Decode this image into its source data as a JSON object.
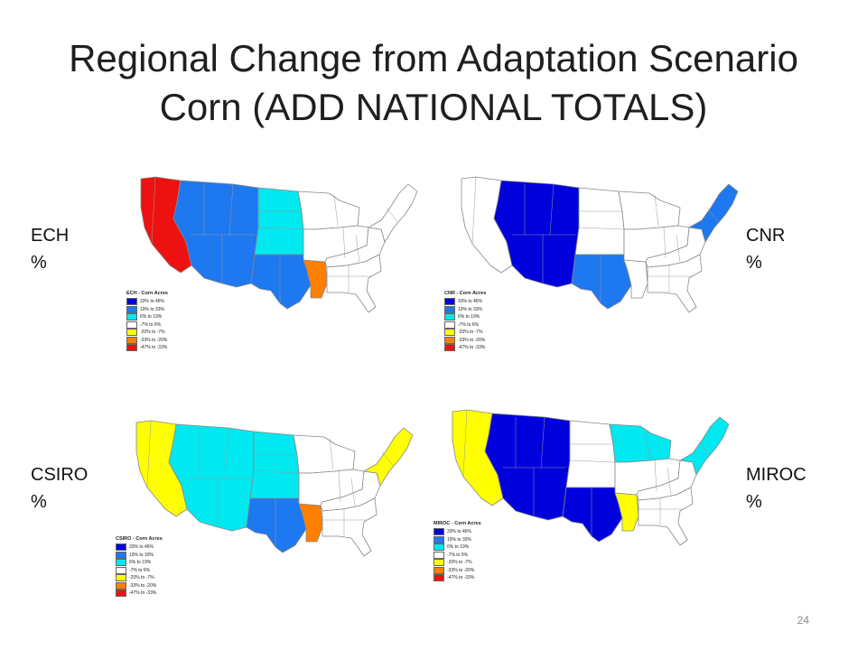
{
  "slide": {
    "title_line1": "Regional Change from Adaptation Scenario",
    "title_line2": "Corn (ADD NATIONAL TOTALS)",
    "page_number": "24"
  },
  "legend_items": [
    {
      "label": "33% to 46%",
      "color": "#0000dd"
    },
    {
      "label": "19% to 33%",
      "color": "#1e78f0"
    },
    {
      "label": "6% to 19%",
      "color": "#00e8f0"
    },
    {
      "label": "-7% to 6%",
      "color": "#ffffff"
    },
    {
      "label": "-20% to -7%",
      "color": "#ffff00"
    },
    {
      "label": "-33% to -20%",
      "color": "#ff7f00"
    },
    {
      "label": "-47% to -33%",
      "color": "#ee1111"
    }
  ],
  "maps": [
    {
      "id": "ech",
      "side_name": "ECH",
      "side_unit": "%",
      "legend_title": "ECH - Corn Acres",
      "regions": {
        "pacific": "#ee1111",
        "mountain": "#1e78f0",
        "northern_plains": "#00e8f0",
        "southern_plains": "#1e78f0",
        "delta": "#ff7f00",
        "lake_states": "#ffffff",
        "corn_belt": "#ffffff",
        "appalachia": "#ffffff",
        "southeast": "#ffffff",
        "northeast": "#ffffff"
      }
    },
    {
      "id": "cnr",
      "side_name": "CNR",
      "side_unit": "%",
      "legend_title": "CNR - Corn Acres",
      "regions": {
        "pacific": "#ffffff",
        "mountain": "#0000dd",
        "northern_plains": "#ffffff",
        "southern_plains": "#1e78f0",
        "delta": "#ffffff",
        "lake_states": "#ffffff",
        "corn_belt": "#ffffff",
        "appalachia": "#ffffff",
        "southeast": "#ffffff",
        "northeast": "#1e78f0"
      }
    },
    {
      "id": "csiro",
      "side_name": "CSIRO",
      "side_unit": "%",
      "legend_title": "CSIRO - Corn Acres",
      "regions": {
        "pacific": "#ffff00",
        "mountain": "#00e8f0",
        "northern_plains": "#00e8f0",
        "southern_plains": "#1e78f0",
        "delta": "#ff7f00",
        "lake_states": "#ffffff",
        "corn_belt": "#ffffff",
        "appalachia": "#ffffff",
        "southeast": "#ffffff",
        "northeast": "#ffff00"
      }
    },
    {
      "id": "miroc",
      "side_name": "MIROC",
      "side_unit": "%",
      "legend_title": "MIROC - Corn Acres",
      "regions": {
        "pacific": "#ffff00",
        "mountain": "#0000dd",
        "northern_plains": "#ffffff",
        "southern_plains": "#0000dd",
        "delta": "#ffff00",
        "lake_states": "#00e8f0",
        "corn_belt": "#ffffff",
        "appalachia": "#ffffff",
        "southeast": "#ffffff",
        "northeast": "#00e8f0"
      }
    }
  ]
}
